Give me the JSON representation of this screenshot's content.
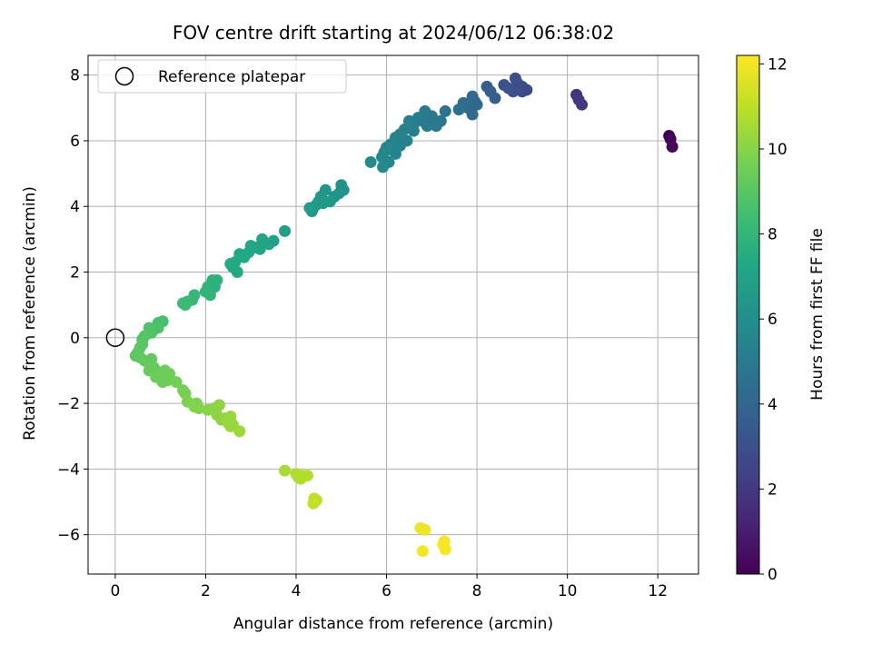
{
  "chart_data": {
    "type": "scatter",
    "title": "FOV centre drift starting at 2024/06/12 06:38:02",
    "xlabel": "Angular distance from reference (arcmin)",
    "ylabel": "Rotation from reference (arcmin)",
    "xlim": [
      -0.6,
      12.9
    ],
    "ylim": [
      -7.2,
      8.6
    ],
    "xticks": [
      0,
      2,
      4,
      6,
      8,
      10,
      12
    ],
    "yticks": [
      -6,
      -4,
      -2,
      0,
      2,
      4,
      6,
      8
    ],
    "grid": true,
    "legend": {
      "position": "top-left",
      "entries": [
        "Reference platepar"
      ]
    },
    "reference_point": {
      "x": 0,
      "y": 0,
      "label": "Reference platepar"
    },
    "colorbar": {
      "label": "Hours from first FF file",
      "range": [
        0,
        12.2
      ],
      "ticks": [
        0,
        2,
        4,
        6,
        8,
        10,
        12
      ],
      "colormap": "viridis"
    },
    "series": [
      {
        "points": [
          [
            12.25,
            6.15,
            0.0
          ],
          [
            12.28,
            6.05,
            0.1
          ],
          [
            12.32,
            5.82,
            0.2
          ],
          [
            10.2,
            7.4,
            1.8
          ],
          [
            10.25,
            7.25,
            1.9
          ],
          [
            10.32,
            7.1,
            2.0
          ],
          [
            9.1,
            7.55,
            2.7
          ],
          [
            9.0,
            7.65,
            2.8
          ],
          [
            8.9,
            7.75,
            2.9
          ],
          [
            8.85,
            7.9,
            3.0
          ],
          [
            8.8,
            7.5,
            3.0
          ],
          [
            8.7,
            7.6,
            3.1
          ],
          [
            8.6,
            7.7,
            3.1
          ],
          [
            9.0,
            7.5,
            2.8
          ],
          [
            8.4,
            7.3,
            3.6
          ],
          [
            8.3,
            7.5,
            3.7
          ],
          [
            8.22,
            7.65,
            3.7
          ],
          [
            7.95,
            7.2,
            4.1
          ],
          [
            7.9,
            7.35,
            4.2
          ],
          [
            7.8,
            7.0,
            4.3
          ],
          [
            7.7,
            7.15,
            4.3
          ],
          [
            7.9,
            6.8,
            4.2
          ],
          [
            7.6,
            6.95,
            4.5
          ],
          [
            8.0,
            7.1,
            4.1
          ],
          [
            7.3,
            6.9,
            4.7
          ],
          [
            7.2,
            6.6,
            4.8
          ],
          [
            7.1,
            6.45,
            4.9
          ],
          [
            7.0,
            6.75,
            4.9
          ],
          [
            6.85,
            6.9,
            5.0
          ],
          [
            6.8,
            6.6,
            5.0
          ],
          [
            6.9,
            6.45,
            5.0
          ],
          [
            6.7,
            6.7,
            5.1
          ],
          [
            6.6,
            6.5,
            5.2
          ],
          [
            6.5,
            6.6,
            5.2
          ],
          [
            6.4,
            6.35,
            5.3
          ],
          [
            6.3,
            6.2,
            5.4
          ],
          [
            6.2,
            6.1,
            5.4
          ],
          [
            6.1,
            5.9,
            5.5
          ],
          [
            6.0,
            5.8,
            5.6
          ],
          [
            5.95,
            5.65,
            5.6
          ],
          [
            5.9,
            5.5,
            5.7
          ],
          [
            6.2,
            5.6,
            5.5
          ],
          [
            6.05,
            5.35,
            5.6
          ],
          [
            5.92,
            5.2,
            5.7
          ],
          [
            5.65,
            5.35,
            5.8
          ],
          [
            6.45,
            6.0,
            5.3
          ],
          [
            6.3,
            5.85,
            5.4
          ],
          [
            6.6,
            6.3,
            5.2
          ],
          [
            5.0,
            4.65,
            6.2
          ],
          [
            5.05,
            4.5,
            6.2
          ],
          [
            4.95,
            4.4,
            6.3
          ],
          [
            4.85,
            4.3,
            6.3
          ],
          [
            4.75,
            4.15,
            6.4
          ],
          [
            4.65,
            4.5,
            6.4
          ],
          [
            4.55,
            4.3,
            6.5
          ],
          [
            4.5,
            4.15,
            6.5
          ],
          [
            4.45,
            4.05,
            6.6
          ],
          [
            4.38,
            3.95,
            6.6
          ],
          [
            4.35,
            3.85,
            6.6
          ],
          [
            4.3,
            3.95,
            6.7
          ],
          [
            4.6,
            4.1,
            6.5
          ],
          [
            3.75,
            3.25,
            6.9
          ],
          [
            3.5,
            2.95,
            7.0
          ],
          [
            3.4,
            2.85,
            7.0
          ],
          [
            3.25,
            3.0,
            7.1
          ],
          [
            3.2,
            2.7,
            7.1
          ],
          [
            3.1,
            2.75,
            7.1
          ],
          [
            3.0,
            2.8,
            7.2
          ],
          [
            2.95,
            2.6,
            7.2
          ],
          [
            2.85,
            2.45,
            7.3
          ],
          [
            2.75,
            2.55,
            7.3
          ],
          [
            2.65,
            2.3,
            7.4
          ],
          [
            2.6,
            2.15,
            7.4
          ],
          [
            2.7,
            2.0,
            7.4
          ],
          [
            2.55,
            2.25,
            7.4
          ],
          [
            2.25,
            1.75,
            7.7
          ],
          [
            2.2,
            1.55,
            7.7
          ],
          [
            2.15,
            1.75,
            7.8
          ],
          [
            2.05,
            1.55,
            7.8
          ],
          [
            2.0,
            1.4,
            7.9
          ],
          [
            2.1,
            1.3,
            7.9
          ],
          [
            1.75,
            1.3,
            8.1
          ],
          [
            1.7,
            1.15,
            8.1
          ],
          [
            1.6,
            1.1,
            8.2
          ],
          [
            1.55,
            1.0,
            8.2
          ],
          [
            1.5,
            1.05,
            8.3
          ],
          [
            1.05,
            0.5,
            8.6
          ],
          [
            0.95,
            0.45,
            8.6
          ],
          [
            0.95,
            0.3,
            8.7
          ],
          [
            0.85,
            0.25,
            8.7
          ],
          [
            0.8,
            0.15,
            8.8
          ],
          [
            0.75,
            0.3,
            8.8
          ],
          [
            0.65,
            0.05,
            8.9
          ],
          [
            0.6,
            -0.05,
            8.9
          ],
          [
            0.6,
            -0.2,
            9.0
          ],
          [
            0.55,
            -0.3,
            9.0
          ],
          [
            0.5,
            -0.45,
            9.1
          ],
          [
            0.45,
            -0.55,
            9.1
          ],
          [
            0.55,
            -0.6,
            9.1
          ],
          [
            0.65,
            -0.7,
            9.2
          ],
          [
            0.75,
            -0.8,
            9.2
          ],
          [
            0.8,
            -0.65,
            9.2
          ],
          [
            0.85,
            -0.9,
            9.3
          ],
          [
            0.9,
            -1.0,
            9.3
          ],
          [
            0.75,
            -1.0,
            9.3
          ],
          [
            0.95,
            -1.15,
            9.4
          ],
          [
            1.0,
            -1.25,
            9.4
          ],
          [
            1.05,
            -1.35,
            9.4
          ],
          [
            0.9,
            -1.2,
            9.4
          ],
          [
            1.15,
            -1.3,
            9.5
          ],
          [
            1.2,
            -1.1,
            9.5
          ],
          [
            1.1,
            -1.0,
            9.5
          ],
          [
            1.35,
            -1.35,
            9.6
          ],
          [
            1.5,
            -1.6,
            9.7
          ],
          [
            1.55,
            -1.7,
            9.7
          ],
          [
            1.6,
            -1.95,
            9.8
          ],
          [
            1.8,
            -2.0,
            9.8
          ],
          [
            1.85,
            -2.15,
            9.9
          ],
          [
            1.75,
            -2.1,
            9.9
          ],
          [
            2.05,
            -2.2,
            10.0
          ],
          [
            2.2,
            -2.15,
            10.0
          ],
          [
            2.25,
            -2.35,
            10.1
          ],
          [
            2.3,
            -2.05,
            10.1
          ],
          [
            2.35,
            -2.5,
            10.1
          ],
          [
            2.45,
            -2.45,
            10.2
          ],
          [
            2.5,
            -2.6,
            10.3
          ],
          [
            2.55,
            -2.7,
            10.3
          ],
          [
            2.6,
            -2.65,
            10.3
          ],
          [
            2.55,
            -2.4,
            10.3
          ],
          [
            2.75,
            -2.85,
            10.4
          ],
          [
            3.75,
            -4.05,
            10.6
          ],
          [
            4.0,
            -4.15,
            10.7
          ],
          [
            4.05,
            -4.25,
            10.7
          ],
          [
            4.1,
            -4.3,
            10.8
          ],
          [
            4.15,
            -4.2,
            10.8
          ],
          [
            4.25,
            -4.2,
            10.8
          ],
          [
            4.4,
            -4.9,
            11.0
          ],
          [
            4.45,
            -4.95,
            11.0
          ],
          [
            4.38,
            -5.05,
            11.1
          ],
          [
            6.75,
            -5.8,
            11.9
          ],
          [
            6.85,
            -5.85,
            11.9
          ],
          [
            6.8,
            -6.5,
            12.0
          ],
          [
            7.25,
            -6.3,
            12.1
          ],
          [
            7.3,
            -6.45,
            12.1
          ],
          [
            7.28,
            -6.2,
            12.1
          ]
        ]
      }
    ]
  }
}
